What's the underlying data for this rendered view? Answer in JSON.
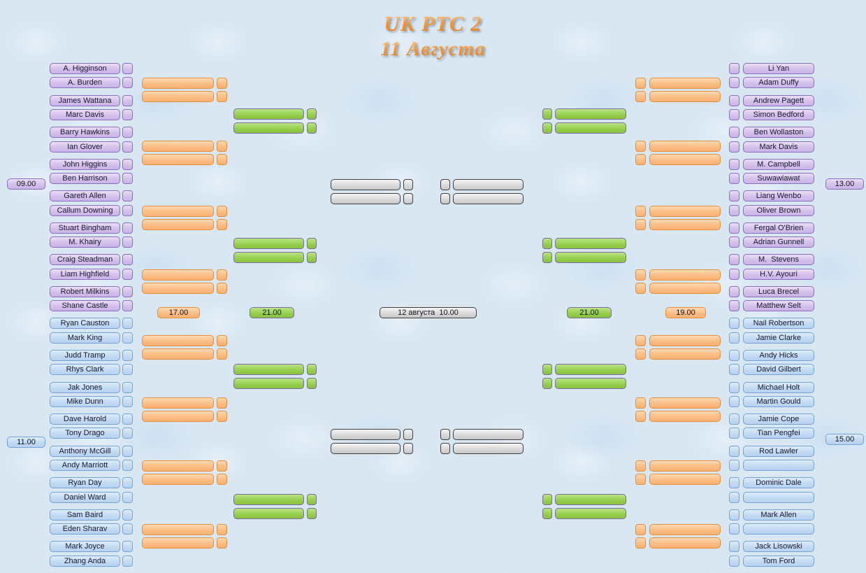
{
  "title": {
    "line1": "UK PTC 2",
    "line2": "11 Августа"
  },
  "bracket": {
    "left_players": [
      "A. Higginson",
      "A. Burden",
      "James Wattana",
      "Marc Davis",
      "Barry Hawkins",
      "Ian Glover",
      "John Higgins",
      "Ben Harrison",
      "Gareth Allen",
      "Callum Downing",
      "Stuart Bingham",
      "M. Khairy",
      "Craig Steadman",
      "Liam Highfield",
      "Robert Milkins",
      "Shane Castle",
      "Ryan Causton",
      "Mark King",
      "Judd Tramp",
      "Rhys Clark",
      "Jak Jones",
      "Mike Dunn",
      "Dave Harold",
      "Tony Drago",
      "Anthony McGill",
      "Andy Marriott",
      "Ryan Day",
      "Daniel Ward",
      "Sam Baird",
      "Eden Sharav",
      "Mark Joyce",
      "Zhang Anda"
    ],
    "right_players": [
      "Li Yan",
      "Adam Duffy",
      "Andrew Pagett",
      "Simon Bedford",
      "Ben Wollaston",
      "Mark Davis",
      "M. Campbell",
      "Suwawiawat",
      "Liang Wenbo",
      "Oliver Brown",
      "Fergal O'Brien",
      "Adrian Gunnell",
      "M.  Stevens",
      "H.V. Ayouri",
      "Luca Brecel",
      "Matthew Selt",
      "Nail Robertson",
      "Jamie Clarke",
      "Andy Hicks",
      "David Gilbert",
      "Michael Holt",
      "Martin Gould",
      "Jamie Cope",
      "Tian Pengfei",
      "Rod Lawler",
      "",
      "Dominic Dale",
      "",
      "Mark Allen",
      "",
      "Jack Lisowski",
      "Tom Ford"
    ]
  },
  "time_labels": [
    {
      "text": "09.00",
      "style": "purple"
    },
    {
      "text": "11.00",
      "style": "blue"
    },
    {
      "text": "13.00",
      "style": "purple"
    },
    {
      "text": "15.00",
      "style": "blue"
    },
    {
      "text": "17.00",
      "style": "orange"
    },
    {
      "text": "21.00",
      "style": "green"
    },
    {
      "text": "12 августа  10.00",
      "style": "gray"
    },
    {
      "text": "21.00",
      "style": "green"
    },
    {
      "text": "19.00",
      "style": "orange"
    }
  ],
  "colors": {
    "background": "#d9e7f3",
    "title_orange": "#f09041",
    "purple_fill": "#d4c0ec",
    "purple_border": "#8a6fc0",
    "blue_fill": "#c3daf3",
    "blue_border": "#74a3d9",
    "orange_fill": "#fbbd85",
    "orange_border": "#e78f3c",
    "green_fill": "#97cf4e",
    "green_border": "#7a6ba3",
    "gray_fill": "#dadada",
    "gray_border": "#3f3f3f"
  }
}
